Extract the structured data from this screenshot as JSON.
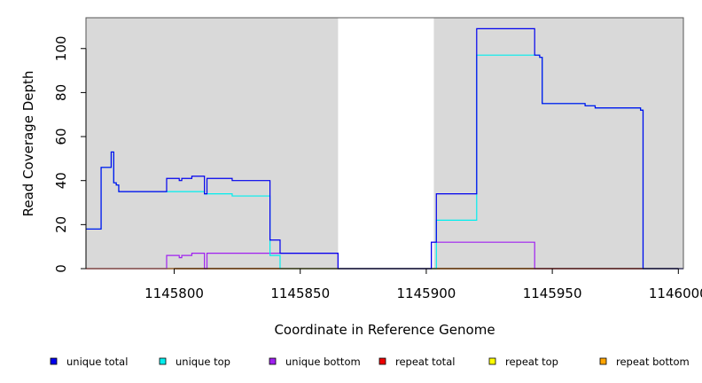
{
  "chart_data": {
    "type": "line",
    "xlabel": "Coordinate in Reference Genome",
    "ylabel": "Read Coverage Depth",
    "xlim": [
      1145765,
      1146002
    ],
    "ylim": [
      0,
      114
    ],
    "x_ticks": [
      1145800,
      1145850,
      1145900,
      1145950,
      1146000
    ],
    "x_tick_labels": [
      "1145800",
      "1145850",
      "1145900",
      "1145950",
      "1146000"
    ],
    "y_ticks": [
      0,
      20,
      40,
      60,
      80,
      100
    ],
    "y_tick_labels": [
      "0",
      "20",
      "40",
      "60",
      "80",
      "100"
    ],
    "grid": false,
    "legend_position": "bottom",
    "shaded_regions": [
      {
        "x0": 1145765,
        "x1": 1145865,
        "color": "#d9d9d9"
      },
      {
        "x0": 1145903,
        "x1": 1146002,
        "color": "#d9d9d9"
      }
    ],
    "legend": [
      {
        "name": "unique total",
        "color": "#0000ee"
      },
      {
        "name": "unique top",
        "color": "#00eeee"
      },
      {
        "name": "unique bottom",
        "color": "#a020f0"
      },
      {
        "name": "repeat total",
        "color": "#ee0000"
      },
      {
        "name": "repeat top",
        "color": "#ffff00"
      },
      {
        "name": "repeat bottom",
        "color": "#ffa500"
      }
    ],
    "series": [
      {
        "name": "unique total",
        "color": "#0000ee",
        "points": [
          [
            1145765,
            18
          ],
          [
            1145771,
            18
          ],
          [
            1145771,
            46
          ],
          [
            1145775,
            46
          ],
          [
            1145775,
            53
          ],
          [
            1145776,
            53
          ],
          [
            1145776,
            39
          ],
          [
            1145777,
            39
          ],
          [
            1145777,
            38
          ],
          [
            1145778,
            38
          ],
          [
            1145778,
            35
          ],
          [
            1145797,
            35
          ],
          [
            1145797,
            41
          ],
          [
            1145802,
            41
          ],
          [
            1145802,
            40
          ],
          [
            1145803,
            40
          ],
          [
            1145803,
            41
          ],
          [
            1145807,
            41
          ],
          [
            1145807,
            42
          ],
          [
            1145812,
            42
          ],
          [
            1145812,
            34
          ],
          [
            1145813,
            34
          ],
          [
            1145813,
            41
          ],
          [
            1145823,
            41
          ],
          [
            1145823,
            40
          ],
          [
            1145838,
            40
          ],
          [
            1145838,
            13
          ],
          [
            1145842,
            13
          ],
          [
            1145842,
            7
          ],
          [
            1145865,
            7
          ],
          [
            1145865,
            0
          ],
          [
            1145902,
            0
          ],
          [
            1145902,
            12
          ],
          [
            1145904,
            12
          ],
          [
            1145904,
            34
          ],
          [
            1145920,
            34
          ],
          [
            1145920,
            109
          ],
          [
            1145943,
            109
          ],
          [
            1145943,
            97
          ],
          [
            1145945,
            97
          ],
          [
            1145945,
            96
          ],
          [
            1145946,
            96
          ],
          [
            1145946,
            75
          ],
          [
            1145963,
            75
          ],
          [
            1145963,
            74
          ],
          [
            1145967,
            74
          ],
          [
            1145967,
            73
          ],
          [
            1145985,
            73
          ],
          [
            1145985,
            72
          ],
          [
            1145986,
            72
          ],
          [
            1145986,
            0
          ],
          [
            1146002,
            0
          ]
        ]
      },
      {
        "name": "unique top",
        "color": "#00eeee",
        "points": [
          [
            1145765,
            18
          ],
          [
            1145771,
            18
          ],
          [
            1145771,
            46
          ],
          [
            1145775,
            46
          ],
          [
            1145775,
            53
          ],
          [
            1145776,
            53
          ],
          [
            1145776,
            39
          ],
          [
            1145777,
            39
          ],
          [
            1145777,
            38
          ],
          [
            1145778,
            38
          ],
          [
            1145778,
            35
          ],
          [
            1145797,
            35
          ],
          [
            1145812,
            35
          ],
          [
            1145812,
            34
          ],
          [
            1145823,
            34
          ],
          [
            1145823,
            33
          ],
          [
            1145838,
            33
          ],
          [
            1145838,
            6
          ],
          [
            1145842,
            6
          ],
          [
            1145842,
            0
          ],
          [
            1145865,
            0
          ],
          [
            1145904,
            0
          ],
          [
            1145904,
            22
          ],
          [
            1145920,
            22
          ],
          [
            1145920,
            97
          ],
          [
            1145945,
            97
          ],
          [
            1145945,
            96
          ],
          [
            1145946,
            96
          ],
          [
            1145946,
            75
          ],
          [
            1145963,
            75
          ],
          [
            1145963,
            74
          ],
          [
            1145967,
            74
          ],
          [
            1145967,
            73
          ],
          [
            1145985,
            73
          ],
          [
            1145985,
            72
          ],
          [
            1145986,
            72
          ],
          [
            1145986,
            0
          ],
          [
            1146002,
            0
          ]
        ]
      },
      {
        "name": "unique bottom",
        "color": "#a020f0",
        "points": [
          [
            1145765,
            0
          ],
          [
            1145797,
            0
          ],
          [
            1145797,
            6
          ],
          [
            1145802,
            6
          ],
          [
            1145802,
            5
          ],
          [
            1145803,
            5
          ],
          [
            1145803,
            6
          ],
          [
            1145807,
            6
          ],
          [
            1145807,
            7
          ],
          [
            1145812,
            7
          ],
          [
            1145812,
            0
          ],
          [
            1145813,
            0
          ],
          [
            1145813,
            7
          ],
          [
            1145842,
            7
          ],
          [
            1145865,
            7
          ],
          [
            1145865,
            0
          ],
          [
            1145902,
            0
          ],
          [
            1145902,
            12
          ],
          [
            1145943,
            12
          ],
          [
            1145943,
            0
          ],
          [
            1146002,
            0
          ]
        ]
      },
      {
        "name": "repeat total",
        "color": "#ee0000",
        "points": [
          [
            1145765,
            0
          ],
          [
            1146002,
            0
          ]
        ]
      },
      {
        "name": "repeat top",
        "color": "#ffff00",
        "points": [
          [
            1145765,
            0
          ],
          [
            1146002,
            0
          ]
        ]
      },
      {
        "name": "repeat bottom",
        "color": "#ffa500",
        "points": [
          [
            1145765,
            0
          ],
          [
            1146002,
            0
          ]
        ]
      }
    ]
  }
}
